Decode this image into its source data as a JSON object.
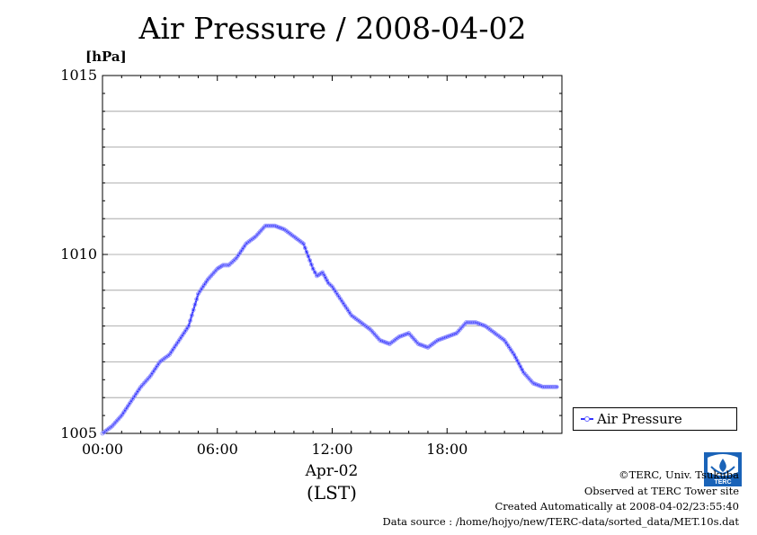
{
  "title": "Air Pressure / 2008-04-02",
  "unit_label": "[hPa]",
  "date_label": "Apr-02",
  "tz_label": "(LST)",
  "legend_label": "Air Pressure",
  "footer": {
    "copyright": "©TERC, Univ. Tsukuba",
    "observed": "Observed at TERC Tower site",
    "created": "Created Automatically at 2008-04-02/23:55:40",
    "source": "Data source : /home/hojyo/new/TERC-data/sorted_data/MET.10s.dat"
  },
  "logo_text": "TERC",
  "colors": {
    "series": "#3333ff",
    "marker": "#8a8aff",
    "grid": "#9a9a9a"
  },
  "chart_data": {
    "type": "line",
    "title": "Air Pressure / 2008-04-02",
    "ylabel": "[hPa]",
    "xlabel": "Apr-02 (LST)",
    "ylim": [
      1005,
      1015
    ],
    "xlim": [
      0,
      24
    ],
    "y_ticks": [
      "1015",
      "1010",
      "1005"
    ],
    "y_tick_values": [
      1015,
      1010,
      1005
    ],
    "x_ticks": [
      "00:00",
      "06:00",
      "12:00",
      "18:00"
    ],
    "x_tick_values": [
      0,
      6,
      12,
      18
    ],
    "grid": true,
    "legend_position": "bottom-right",
    "series": [
      {
        "name": "Air Pressure",
        "x": [
          0,
          0.5,
          1,
          1.5,
          2,
          2.5,
          3,
          3.5,
          4,
          4.5,
          5,
          5.5,
          6,
          6.3,
          6.6,
          7,
          7.5,
          8,
          8.5,
          9,
          9.5,
          10,
          10.5,
          11,
          11.2,
          11.5,
          11.8,
          12,
          12.5,
          13,
          13.5,
          14,
          14.5,
          15,
          15.5,
          16,
          16.5,
          17,
          17.5,
          18,
          18.5,
          19,
          19.5,
          20,
          20.5,
          21,
          21.5,
          22,
          22.5,
          23,
          23.5,
          23.8
        ],
        "values": [
          1005.0,
          1005.2,
          1005.5,
          1005.9,
          1006.3,
          1006.6,
          1007.0,
          1007.2,
          1007.6,
          1008.0,
          1008.9,
          1009.3,
          1009.6,
          1009.7,
          1009.7,
          1009.9,
          1010.3,
          1010.5,
          1010.8,
          1010.8,
          1010.7,
          1010.5,
          1010.3,
          1009.6,
          1009.4,
          1009.5,
          1009.2,
          1009.1,
          1008.7,
          1008.3,
          1008.1,
          1007.9,
          1007.6,
          1007.5,
          1007.7,
          1007.8,
          1007.5,
          1007.4,
          1007.6,
          1007.7,
          1007.8,
          1008.1,
          1008.1,
          1008.0,
          1007.8,
          1007.6,
          1007.2,
          1006.7,
          1006.4,
          1006.3,
          1006.3,
          1006.3
        ]
      }
    ]
  }
}
